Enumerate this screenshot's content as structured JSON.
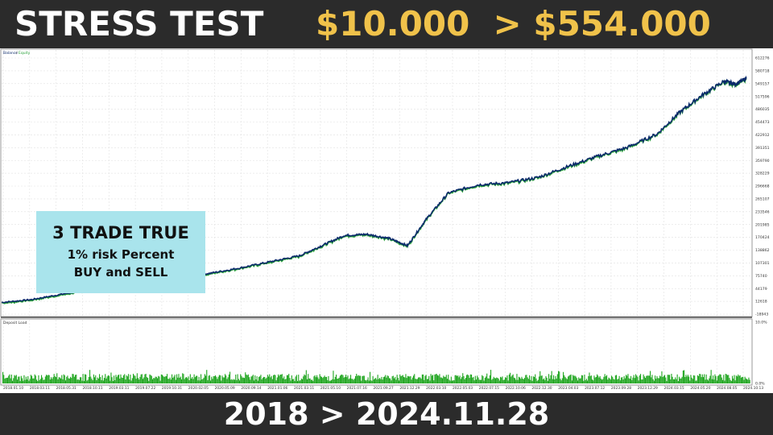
{
  "header": {
    "title": "STRESS TEST",
    "amount": "$10.000  > $554.000"
  },
  "info_box": {
    "line1": "3 TRADE TRUE",
    "line2": "1% risk Percent",
    "line3": "BUY and SELL"
  },
  "footer": {
    "text": "2018 > 2024.11.28"
  },
  "colors": {
    "balance": "#0b2a6b",
    "equity": "#2aa23a",
    "deposit_load": "#1fa51f",
    "grid": "#e2e2e2"
  },
  "chart_data": [
    {
      "type": "line",
      "title": "Balance / Equity",
      "legend": [
        "Balance",
        "Equity"
      ],
      "y_ticks": [
        "612276",
        "580718",
        "549157",
        "517596",
        "486035",
        "454473",
        "422912",
        "391351",
        "359790",
        "328229",
        "296668",
        "265107",
        "233546",
        "201985",
        "170424",
        "138862",
        "107301",
        "75740",
        "44179",
        "12618",
        "-18943"
      ],
      "ylim": [
        -18943,
        612276
      ],
      "x_ticks": [
        "2018.01.10",
        "2018.03.11",
        "2018.05.31",
        "2018.10.11",
        "2019.03.11",
        "2019.07.22",
        "2019.10.31",
        "2020.02.05",
        "2020.05.09",
        "2020.09.14",
        "2021.01.06",
        "2021.03.11",
        "2021.05.10",
        "2021.07.16",
        "2021.09.27",
        "2021.12.29",
        "2022.03.10",
        "2022.05.03",
        "2022.07.15",
        "2022.10.06",
        "2022.12.30",
        "2023.04.03",
        "2023.07.12",
        "2023.09.28",
        "2023.12.29",
        "2024.03.15",
        "2024.05.20",
        "2024.08.05",
        "2024.10.13"
      ],
      "series": [
        {
          "name": "Balance",
          "x": [
            0,
            0.04,
            0.08,
            0.12,
            0.16,
            0.2,
            0.24,
            0.28,
            0.32,
            0.36,
            0.4,
            0.43,
            0.46,
            0.49,
            0.52,
            0.545,
            0.57,
            0.6,
            0.64,
            0.68,
            0.72,
            0.76,
            0.8,
            0.84,
            0.88,
            0.91,
            0.94,
            0.97,
            0.985,
            1.0
          ],
          "values": [
            10000,
            17000,
            30000,
            42000,
            52000,
            63000,
            72000,
            82000,
            95000,
            110000,
            125000,
            150000,
            175000,
            178000,
            168000,
            150000,
            215000,
            280000,
            300000,
            305000,
            318000,
            345000,
            370000,
            392000,
            425000,
            478000,
            520000,
            555000,
            548000,
            562000
          ]
        }
      ]
    },
    {
      "type": "area",
      "title": "Deposit Load",
      "y_ticks": [
        "10.0%",
        "0.0%"
      ],
      "ylim": [
        0,
        10
      ]
    }
  ]
}
